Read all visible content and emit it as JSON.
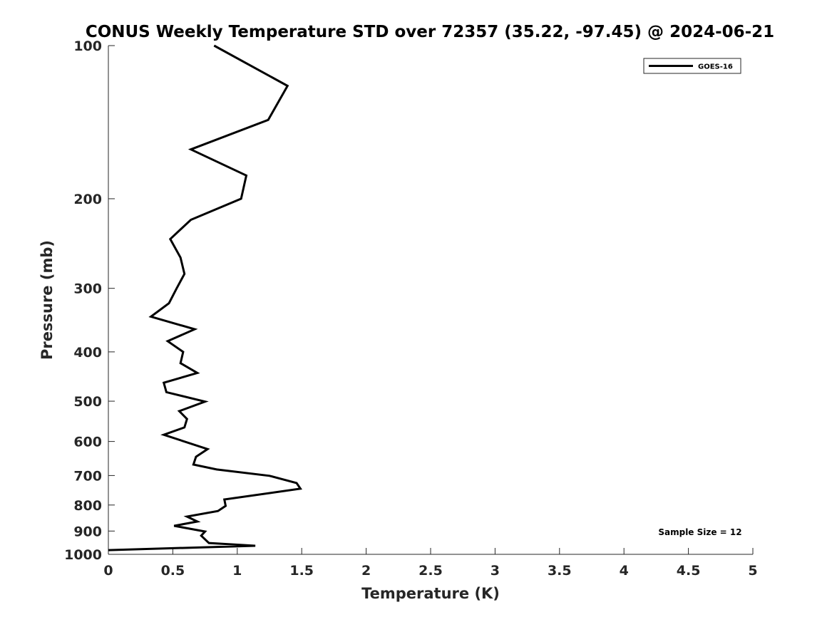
{
  "chart_data": {
    "type": "line",
    "title": "CONUS Weekly Temperature STD over 72357 (35.22, -97.45) @ 2024-06-21",
    "xlabel": "Temperature (K)",
    "ylabel": "Pressure (mb)",
    "xlim": [
      0,
      5
    ],
    "ylim": [
      100,
      1000
    ],
    "yscale": "log",
    "yreversed": true,
    "xticks": [
      "0",
      "0.5",
      "1",
      "1.5",
      "2",
      "2.5",
      "3",
      "3.5",
      "4",
      "4.5",
      "5"
    ],
    "yticks": [
      "100",
      "200",
      "300",
      "400",
      "500",
      "600",
      "700",
      "800",
      "900",
      "1000"
    ],
    "grid": false,
    "legend": {
      "placement": "top-right",
      "entries": [
        "GOES-16"
      ]
    },
    "annotation": "Sample Size = 12",
    "series": [
      {
        "name": "GOES-16",
        "color": "#000000",
        "temperature": [
          0.82,
          1.39,
          1.24,
          0.64,
          1.07,
          1.03,
          0.64,
          0.48,
          0.56,
          0.59,
          0.53,
          0.47,
          0.33,
          0.67,
          0.46,
          0.58,
          0.56,
          0.69,
          0.43,
          0.45,
          0.75,
          0.55,
          0.61,
          0.59,
          0.43,
          0.77,
          0.68,
          0.66,
          0.84,
          1.25,
          1.46,
          1.49,
          0.9,
          0.91,
          0.85,
          0.61,
          0.69,
          0.51,
          0.75,
          0.72,
          0.78,
          1.14,
          0.0
        ],
        "pressure": [
          100,
          120,
          140,
          160,
          180,
          200,
          220,
          240,
          261,
          281,
          300,
          321,
          341,
          361,
          381,
          400,
          421,
          440,
          460,
          480,
          501,
          523,
          542,
          563,
          582,
          621,
          643,
          666,
          681,
          701,
          724,
          743,
          780,
          803,
          822,
          843,
          862,
          879,
          902,
          919,
          950,
          962,
          981
        ]
      }
    ]
  }
}
